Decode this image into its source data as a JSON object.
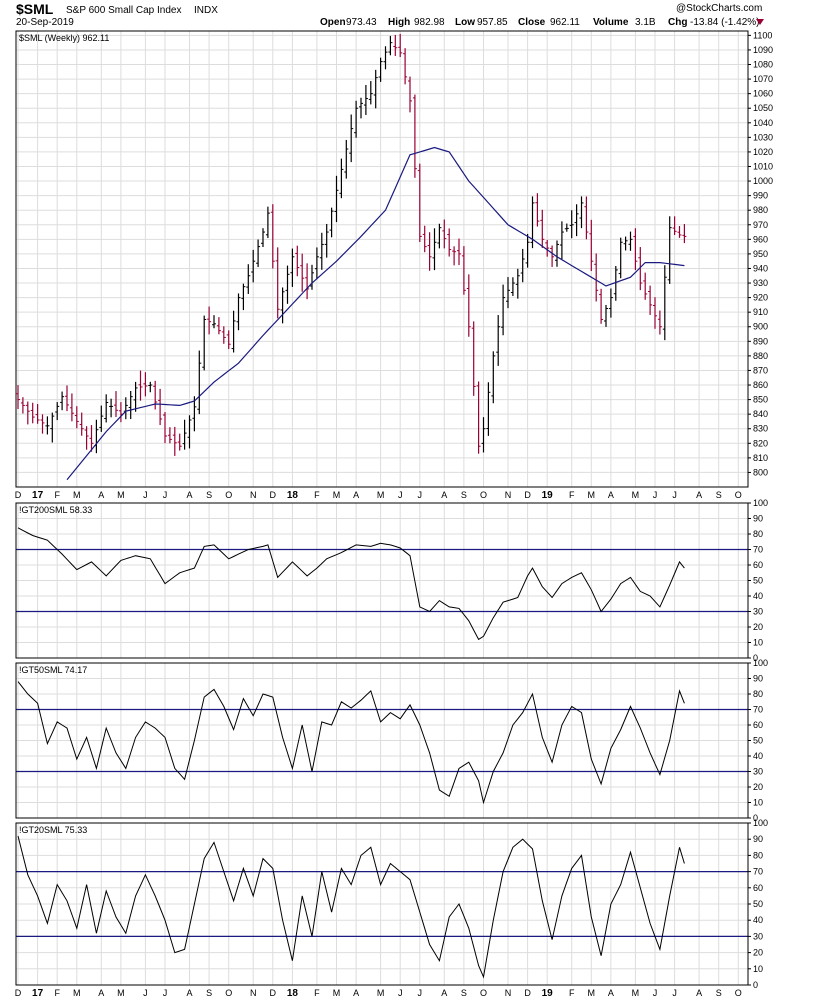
{
  "header": {
    "symbol": "$SML",
    "name": "S&P 600 Small Cap Index",
    "exchange": "INDX",
    "date": "20-Sep-2019",
    "open_label": "Open",
    "open": "973.43",
    "high_label": "High",
    "high": "982.98",
    "low_label": "Low",
    "low": "957.85",
    "close_label": "Close",
    "close": "962.11",
    "volume_label": "Volume",
    "volume": "3.1B",
    "chg_label": "Chg",
    "chg": "-13.84 (-1.42%)",
    "watermark": "@StockCharts.com"
  },
  "colors": {
    "up": "#000000",
    "down": "#990033",
    "ma": "#1a1a80",
    "ref_lines": "#1a1a80",
    "grid": "#dddddd",
    "frame": "#000000"
  },
  "chart_data": [
    {
      "type": "ohlc",
      "legend": "$SML (Weekly) 962.11",
      "ylim": [
        790,
        1103
      ],
      "yticks": [
        800,
        810,
        820,
        830,
        840,
        850,
        860,
        870,
        880,
        890,
        900,
        910,
        920,
        930,
        940,
        950,
        960,
        970,
        980,
        990,
        1000,
        1010,
        1020,
        1030,
        1040,
        1050,
        1060,
        1070,
        1080,
        1090,
        1100
      ],
      "grid": true,
      "close_anchors": [
        [
          0,
          850
        ],
        [
          3,
          838
        ],
        [
          6,
          832
        ],
        [
          9,
          852
        ],
        [
          12,
          835
        ],
        [
          15,
          820
        ],
        [
          18,
          848
        ],
        [
          21,
          840
        ],
        [
          24,
          858
        ],
        [
          27,
          860
        ],
        [
          30,
          825
        ],
        [
          33,
          818
        ],
        [
          36,
          845
        ],
        [
          38,
          905
        ],
        [
          40,
          902
        ],
        [
          43,
          888
        ],
        [
          45,
          920
        ],
        [
          47,
          935
        ],
        [
          50,
          965
        ],
        [
          51,
          978
        ],
        [
          53,
          912
        ],
        [
          56,
          948
        ],
        [
          59,
          926
        ],
        [
          61,
          948
        ],
        [
          63,
          965
        ],
        [
          66,
          1008
        ],
        [
          69,
          1050
        ],
        [
          72,
          1060
        ],
        [
          74,
          1082
        ],
        [
          76,
          1095
        ],
        [
          78,
          1088
        ],
        [
          80,
          1055
        ],
        [
          82,
          962
        ],
        [
          84,
          948
        ],
        [
          86,
          968
        ],
        [
          88,
          953
        ],
        [
          90,
          950
        ],
        [
          92,
          900
        ],
        [
          94,
          818
        ],
        [
          95,
          830
        ],
        [
          97,
          880
        ],
        [
          99,
          920
        ],
        [
          102,
          935
        ],
        [
          104,
          958
        ],
        [
          105,
          985
        ],
        [
          107,
          960
        ],
        [
          109,
          948
        ],
        [
          111,
          965
        ],
        [
          113,
          970
        ],
        [
          115,
          985
        ],
        [
          117,
          945
        ],
        [
          119,
          905
        ],
        [
          121,
          920
        ],
        [
          123,
          958
        ],
        [
          125,
          960
        ],
        [
          127,
          930
        ],
        [
          129,
          915
        ],
        [
          131,
          900
        ],
        [
          133,
          968
        ],
        [
          135,
          963
        ],
        [
          136,
          962
        ]
      ],
      "ma_anchors": [
        [
          10,
          795
        ],
        [
          18,
          828
        ],
        [
          22,
          842
        ],
        [
          28,
          847
        ],
        [
          33,
          846
        ],
        [
          36,
          849
        ],
        [
          40,
          862
        ],
        [
          45,
          875
        ],
        [
          50,
          894
        ],
        [
          55,
          912
        ],
        [
          60,
          930
        ],
        [
          65,
          945
        ],
        [
          70,
          962
        ],
        [
          75,
          980
        ],
        [
          80,
          1018
        ],
        [
          85,
          1023
        ],
        [
          88,
          1020
        ],
        [
          92,
          1000
        ],
        [
          96,
          985
        ],
        [
          100,
          970
        ],
        [
          105,
          960
        ],
        [
          110,
          948
        ],
        [
          115,
          938
        ],
        [
          120,
          928
        ],
        [
          125,
          934
        ],
        [
          128,
          944
        ],
        [
          131,
          944
        ],
        [
          136,
          942
        ]
      ]
    },
    {
      "type": "line",
      "legend": "!GT200SML 58.33",
      "ylim": [
        0,
        100
      ],
      "yticks": [
        0,
        10,
        20,
        30,
        40,
        50,
        60,
        70,
        80,
        90,
        100
      ],
      "ref_lines": [
        30,
        70
      ],
      "anchors": [
        [
          0,
          84
        ],
        [
          3,
          79
        ],
        [
          6,
          76
        ],
        [
          9,
          67
        ],
        [
          12,
          57
        ],
        [
          15,
          62
        ],
        [
          18,
          53
        ],
        [
          21,
          63
        ],
        [
          24,
          66
        ],
        [
          27,
          64
        ],
        [
          30,
          48
        ],
        [
          33,
          55
        ],
        [
          36,
          58
        ],
        [
          38,
          72
        ],
        [
          40,
          73
        ],
        [
          43,
          64
        ],
        [
          45,
          67
        ],
        [
          47,
          70
        ],
        [
          50,
          72
        ],
        [
          51,
          73
        ],
        [
          53,
          52
        ],
        [
          56,
          62
        ],
        [
          59,
          53
        ],
        [
          61,
          58
        ],
        [
          63,
          64
        ],
        [
          66,
          68
        ],
        [
          69,
          73
        ],
        [
          72,
          72
        ],
        [
          74,
          74
        ],
        [
          76,
          73
        ],
        [
          78,
          71
        ],
        [
          80,
          66
        ],
        [
          82,
          33
        ],
        [
          84,
          30
        ],
        [
          86,
          37
        ],
        [
          88,
          33
        ],
        [
          90,
          32
        ],
        [
          92,
          24
        ],
        [
          94,
          12
        ],
        [
          95,
          14
        ],
        [
          97,
          26
        ],
        [
          99,
          36
        ],
        [
          102,
          39
        ],
        [
          104,
          53
        ],
        [
          105,
          58
        ],
        [
          107,
          46
        ],
        [
          109,
          39
        ],
        [
          111,
          48
        ],
        [
          113,
          52
        ],
        [
          115,
          55
        ],
        [
          117,
          44
        ],
        [
          119,
          30
        ],
        [
          121,
          38
        ],
        [
          123,
          48
        ],
        [
          125,
          52
        ],
        [
          127,
          43
        ],
        [
          129,
          40
        ],
        [
          131,
          33
        ],
        [
          133,
          47
        ],
        [
          135,
          62
        ],
        [
          136,
          58
        ]
      ]
    },
    {
      "type": "line",
      "legend": "!GT50SML 74.17",
      "ylim": [
        0,
        100
      ],
      "yticks": [
        0,
        10,
        20,
        30,
        40,
        50,
        60,
        70,
        80,
        90,
        100
      ],
      "ref_lines": [
        30,
        70
      ],
      "anchors": [
        [
          0,
          88
        ],
        [
          2,
          80
        ],
        [
          4,
          74
        ],
        [
          6,
          48
        ],
        [
          8,
          62
        ],
        [
          10,
          58
        ],
        [
          12,
          38
        ],
        [
          14,
          52
        ],
        [
          16,
          32
        ],
        [
          18,
          58
        ],
        [
          20,
          42
        ],
        [
          22,
          32
        ],
        [
          24,
          52
        ],
        [
          26,
          62
        ],
        [
          28,
          58
        ],
        [
          30,
          52
        ],
        [
          32,
          32
        ],
        [
          34,
          25
        ],
        [
          36,
          50
        ],
        [
          38,
          78
        ],
        [
          40,
          83
        ],
        [
          42,
          72
        ],
        [
          44,
          57
        ],
        [
          46,
          77
        ],
        [
          48,
          66
        ],
        [
          50,
          80
        ],
        [
          52,
          78
        ],
        [
          54,
          52
        ],
        [
          56,
          32
        ],
        [
          58,
          60
        ],
        [
          60,
          30
        ],
        [
          62,
          62
        ],
        [
          64,
          60
        ],
        [
          66,
          75
        ],
        [
          68,
          71
        ],
        [
          70,
          76
        ],
        [
          72,
          82
        ],
        [
          74,
          62
        ],
        [
          76,
          68
        ],
        [
          78,
          64
        ],
        [
          80,
          73
        ],
        [
          82,
          60
        ],
        [
          84,
          42
        ],
        [
          86,
          18
        ],
        [
          88,
          14
        ],
        [
          90,
          32
        ],
        [
          92,
          36
        ],
        [
          94,
          24
        ],
        [
          95,
          10
        ],
        [
          97,
          30
        ],
        [
          99,
          42
        ],
        [
          101,
          60
        ],
        [
          103,
          68
        ],
        [
          105,
          80
        ],
        [
          107,
          52
        ],
        [
          109,
          36
        ],
        [
          111,
          60
        ],
        [
          113,
          72
        ],
        [
          115,
          68
        ],
        [
          117,
          38
        ],
        [
          119,
          22
        ],
        [
          121,
          45
        ],
        [
          123,
          57
        ],
        [
          125,
          72
        ],
        [
          127,
          58
        ],
        [
          129,
          42
        ],
        [
          131,
          28
        ],
        [
          133,
          50
        ],
        [
          135,
          82
        ],
        [
          136,
          74
        ]
      ]
    },
    {
      "type": "line",
      "legend": "!GT20SML 75.33",
      "ylim": [
        0,
        100
      ],
      "yticks": [
        0,
        10,
        20,
        30,
        40,
        50,
        60,
        70,
        80,
        90,
        100
      ],
      "ref_lines": [
        30,
        70
      ],
      "anchors": [
        [
          0,
          92
        ],
        [
          2,
          68
        ],
        [
          4,
          55
        ],
        [
          6,
          38
        ],
        [
          8,
          62
        ],
        [
          10,
          52
        ],
        [
          12,
          35
        ],
        [
          14,
          62
        ],
        [
          16,
          32
        ],
        [
          18,
          58
        ],
        [
          20,
          42
        ],
        [
          22,
          32
        ],
        [
          24,
          55
        ],
        [
          26,
          68
        ],
        [
          28,
          55
        ],
        [
          30,
          40
        ],
        [
          32,
          20
        ],
        [
          34,
          22
        ],
        [
          36,
          50
        ],
        [
          38,
          78
        ],
        [
          40,
          88
        ],
        [
          42,
          70
        ],
        [
          44,
          52
        ],
        [
          46,
          72
        ],
        [
          48,
          55
        ],
        [
          50,
          78
        ],
        [
          52,
          72
        ],
        [
          54,
          40
        ],
        [
          56,
          15
        ],
        [
          58,
          55
        ],
        [
          60,
          30
        ],
        [
          62,
          70
        ],
        [
          64,
          45
        ],
        [
          66,
          72
        ],
        [
          68,
          62
        ],
        [
          70,
          80
        ],
        [
          72,
          85
        ],
        [
          74,
          62
        ],
        [
          76,
          75
        ],
        [
          78,
          70
        ],
        [
          80,
          65
        ],
        [
          82,
          45
        ],
        [
          84,
          25
        ],
        [
          86,
          15
        ],
        [
          88,
          42
        ],
        [
          90,
          50
        ],
        [
          92,
          35
        ],
        [
          94,
          12
        ],
        [
          95,
          5
        ],
        [
          97,
          40
        ],
        [
          99,
          70
        ],
        [
          101,
          85
        ],
        [
          103,
          90
        ],
        [
          105,
          84
        ],
        [
          107,
          52
        ],
        [
          109,
          28
        ],
        [
          111,
          55
        ],
        [
          113,
          72
        ],
        [
          115,
          80
        ],
        [
          117,
          42
        ],
        [
          119,
          18
        ],
        [
          121,
          50
        ],
        [
          123,
          62
        ],
        [
          125,
          82
        ],
        [
          127,
          60
        ],
        [
          129,
          38
        ],
        [
          131,
          22
        ],
        [
          133,
          55
        ],
        [
          135,
          85
        ],
        [
          136,
          75
        ]
      ]
    }
  ],
  "xaxis": {
    "labels": [
      [
        0,
        "D"
      ],
      [
        4,
        "17"
      ],
      [
        8,
        "F"
      ],
      [
        12,
        "M"
      ],
      [
        17,
        "A"
      ],
      [
        21,
        "M"
      ],
      [
        26,
        "J"
      ],
      [
        30,
        "J"
      ],
      [
        35,
        "A"
      ],
      [
        39,
        "S"
      ],
      [
        43,
        "O"
      ],
      [
        48,
        "N"
      ],
      [
        52,
        "D"
      ],
      [
        56,
        "18"
      ],
      [
        61,
        "F"
      ],
      [
        65,
        "M"
      ],
      [
        69,
        "A"
      ],
      [
        74,
        "M"
      ],
      [
        78,
        "J"
      ],
      [
        82,
        "J"
      ],
      [
        87,
        "A"
      ],
      [
        91,
        "S"
      ],
      [
        95,
        "O"
      ],
      [
        100,
        "N"
      ],
      [
        104,
        "D"
      ],
      [
        108,
        "19"
      ],
      [
        113,
        "F"
      ],
      [
        117,
        "M"
      ],
      [
        121,
        "A"
      ],
      [
        126,
        "M"
      ],
      [
        130,
        "J"
      ],
      [
        134,
        "J"
      ],
      [
        139,
        "A"
      ],
      [
        143,
        "S"
      ],
      [
        147,
        "O"
      ]
    ],
    "bold_labels": [
      "17",
      "18",
      "19"
    ]
  }
}
